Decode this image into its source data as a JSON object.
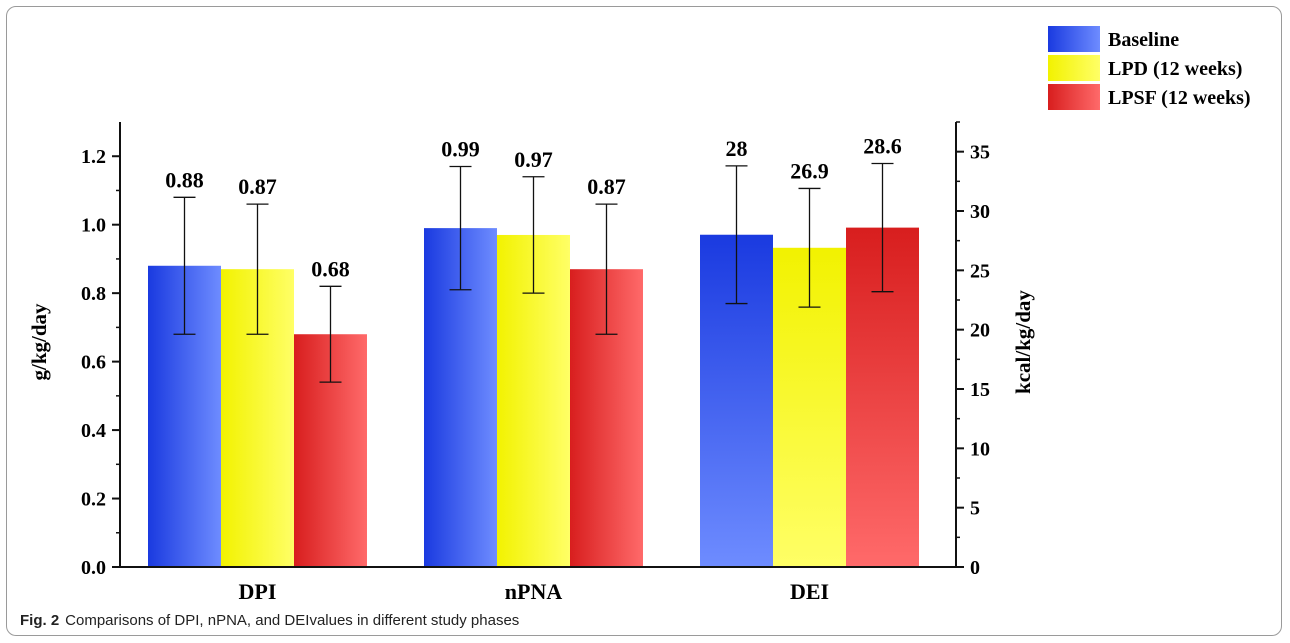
{
  "chart_data": {
    "type": "bar",
    "categories": [
      "DPI",
      "nPNA",
      "DEI"
    ],
    "series": [
      {
        "name": "Baseline",
        "values": [
          0.88,
          0.99,
          28
        ],
        "errors": [
          0.2,
          0.18,
          5.8
        ]
      },
      {
        "name": "LPD (12 weeks)",
        "values": [
          0.87,
          0.97,
          26.9
        ],
        "errors": [
          0.19,
          0.17,
          5.0
        ]
      },
      {
        "name": "LPSF (12 weeks)",
        "values": [
          0.68,
          0.87,
          28.6
        ],
        "errors": [
          0.14,
          0.19,
          5.4
        ]
      }
    ],
    "value_labels": [
      [
        "0.88",
        "0.99",
        "28"
      ],
      [
        "0.87",
        "0.97",
        "26.9"
      ],
      [
        "0.68",
        "0.87",
        "28.6"
      ]
    ],
    "axis_assignment": [
      "left",
      "left",
      "right"
    ],
    "ylabel": "g/kg/day",
    "ylabel_right": "kcal/kg/day",
    "ylim": [
      0,
      1.3
    ],
    "ylim_right": [
      0,
      37.5
    ],
    "yticks": [
      "0.0",
      "0.2",
      "0.4",
      "0.6",
      "0.8",
      "1.0",
      "1.2"
    ],
    "yticks_right": [
      "0",
      "5",
      "10",
      "15",
      "20",
      "25",
      "30",
      "35"
    ],
    "legend_position": "top-right",
    "grid": false,
    "colors": [
      "#2f57f0",
      "#ffff1a",
      "#e82a2a"
    ]
  },
  "caption": {
    "label": "Fig. 2",
    "text": "Comparisons of DPI, nPNA, and DEIvalues in different study phases"
  }
}
